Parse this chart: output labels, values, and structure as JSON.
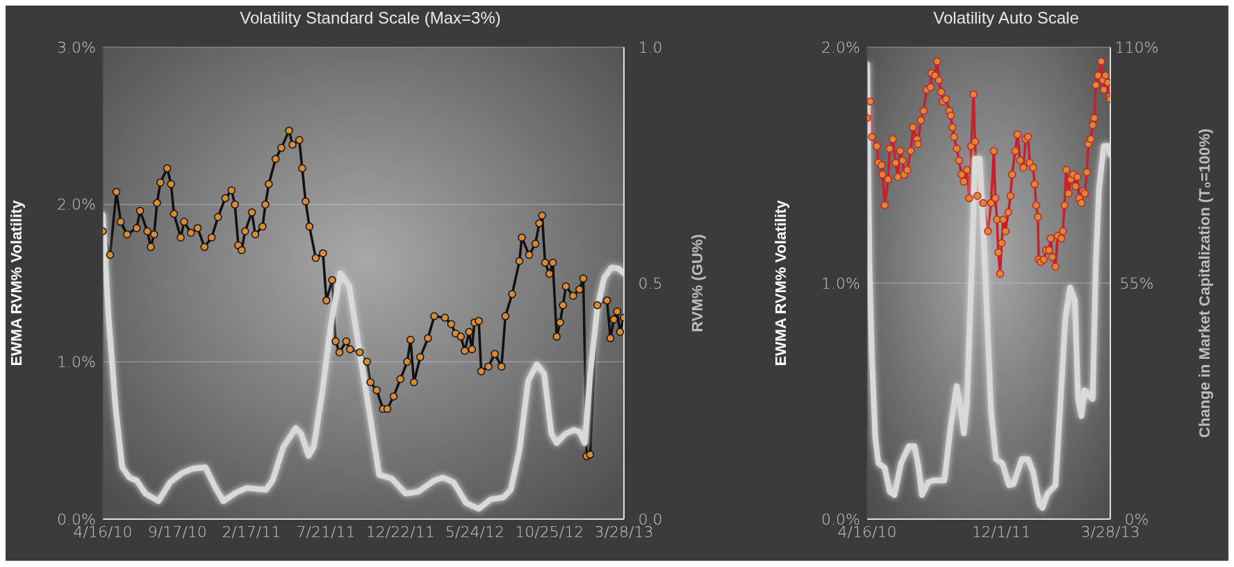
{
  "chart_data": [
    {
      "type": "line",
      "title": "Volatility Standard Scale (Max=3%)",
      "ylabel": "EWMA RVM% Volatility",
      "y2label": "RVM% (GU%)",
      "grid": "y",
      "xlim": [
        "2010-04-16",
        "2013-03-28"
      ],
      "xticks": [
        {
          "value": "2010-04-16",
          "label": "4/16/10"
        },
        {
          "value": "2010-09-17",
          "label": "9/17/10"
        },
        {
          "value": "2011-02-17",
          "label": "2/17/11"
        },
        {
          "value": "2011-07-21",
          "label": "7/21/11"
        },
        {
          "value": "2011-12-22",
          "label": "12/22/11"
        },
        {
          "value": "2012-05-24",
          "label": "5/24/12"
        },
        {
          "value": "2012-10-25",
          "label": "10/25/12"
        },
        {
          "value": "2013-03-28",
          "label": "3/28/13"
        }
      ],
      "ylim": [
        0,
        3
      ],
      "yticks": [
        {
          "value": 0,
          "label": "0.0%"
        },
        {
          "value": 1,
          "label": "1.0%"
        },
        {
          "value": 2,
          "label": "2.0%"
        },
        {
          "value": 3,
          "label": "3.0%"
        }
      ],
      "y2lim": [
        0,
        1
      ],
      "y2ticks": [
        {
          "value": 0,
          "label": "0.0"
        },
        {
          "value": 0.5,
          "label": "0.5"
        },
        {
          "value": 1,
          "label": "1.0"
        }
      ],
      "series": [
        {
          "color": "#111111",
          "marker": "circle",
          "x": [
            "2010-04-16",
            "2010-05-01",
            "2010-05-14",
            "2010-05-23",
            "2010-06-05",
            "2010-06-25",
            "2010-07-02",
            "2010-07-17",
            "2010-07-24",
            "2010-07-31",
            "2010-08-06",
            "2010-08-13",
            "2010-08-27",
            "2010-09-04",
            "2010-09-10",
            "2010-09-24",
            "2010-10-01",
            "2010-10-15",
            "2010-10-29",
            "2010-11-12",
            "2010-11-27",
            "2010-12-10",
            "2010-12-25",
            "2011-01-07",
            "2011-01-14",
            "2011-01-21",
            "2011-01-28",
            "2011-02-04",
            "2011-02-18",
            "2011-02-25",
            "2011-03-12",
            "2011-03-18",
            "2011-03-25",
            "2011-04-08",
            "2011-04-20",
            "2011-05-06",
            "2011-05-13",
            "2011-05-27",
            "2011-06-02",
            "2011-06-09",
            "2011-06-17",
            "2011-06-30",
            "2011-07-15",
            "2011-07-22",
            "2011-08-03",
            "2011-08-10",
            "2011-08-18",
            "2011-09-01",
            "2011-09-09",
            "2011-09-29",
            "2011-10-14",
            "2011-10-21",
            "2011-11-03",
            "2011-11-16",
            "2011-11-25",
            "2011-12-08",
            "2011-12-22",
            "2012-01-05",
            "2012-01-12",
            "2012-01-19",
            "2012-02-01",
            "2012-02-17",
            "2012-03-01",
            "2012-03-23",
            "2012-04-05",
            "2012-04-14",
            "2012-04-25",
            "2012-05-03",
            "2012-05-12",
            "2012-05-18",
            "2012-05-23",
            "2012-06-01",
            "2012-06-06",
            "2012-06-21",
            "2012-07-04",
            "2012-07-18",
            "2012-07-26",
            "2012-08-09",
            "2012-08-24",
            "2012-08-29",
            "2012-09-13",
            "2012-09-26",
            "2012-10-04",
            "2012-10-10",
            "2012-10-16",
            "2012-10-25",
            "2012-11-01",
            "2012-11-09",
            "2012-11-16",
            "2012-11-22",
            "2012-11-28",
            "2012-12-13",
            "2012-12-26",
            "2013-01-03",
            "2013-01-10",
            "2013-01-17",
            "2013-02-01",
            "2013-02-21",
            "2013-02-28",
            "2013-03-07",
            "2013-03-14",
            "2013-03-20",
            "2013-03-28"
          ],
          "values": [
            1.83,
            1.68,
            2.08,
            1.89,
            1.81,
            1.85,
            1.96,
            1.83,
            1.73,
            1.81,
            2.01,
            2.14,
            2.23,
            2.13,
            1.94,
            1.79,
            1.89,
            1.82,
            1.85,
            1.73,
            1.79,
            1.92,
            2.04,
            2.09,
            2.0,
            1.74,
            1.71,
            1.83,
            1.95,
            1.81,
            1.86,
            2.0,
            2.13,
            2.29,
            2.36,
            2.47,
            2.38,
            2.41,
            2.23,
            2.02,
            1.86,
            1.66,
            1.69,
            1.39,
            1.52,
            1.13,
            1.06,
            1.13,
            1.08,
            1.06,
            1.0,
            0.87,
            0.82,
            0.7,
            0.7,
            0.78,
            0.89,
            1.0,
            1.14,
            0.87,
            1.03,
            1.15,
            1.29,
            1.28,
            1.24,
            1.18,
            1.16,
            1.07,
            1.19,
            1.08,
            1.25,
            1.26,
            0.94,
            0.97,
            1.05,
            0.97,
            1.29,
            1.43,
            1.64,
            1.79,
            1.68,
            1.75,
            1.88,
            1.93,
            1.63,
            1.56,
            1.63,
            1.16,
            1.25,
            1.36,
            1.48,
            1.42,
            1.46,
            1.53,
            0.4,
            0.41,
            1.36,
            1.39,
            1.15,
            1.27,
            1.32,
            1.19,
            1.28
          ]
        },
        {
          "color": "#d9d9d9",
          "axis": "y2",
          "marker": "none",
          "x": [
            "2010-04-16",
            "2010-04-27",
            "2010-05-12",
            "2010-05-26",
            "2010-06-10",
            "2010-06-25",
            "2010-07-13",
            "2010-08-09",
            "2010-09-02",
            "2010-09-27",
            "2010-10-19",
            "2010-11-14",
            "2010-12-03",
            "2010-12-21",
            "2011-01-16",
            "2011-02-07",
            "2011-03-19",
            "2011-04-02",
            "2011-04-24",
            "2011-05-20",
            "2011-05-31",
            "2011-06-15",
            "2011-06-26",
            "2011-07-14",
            "2011-08-01",
            "2011-08-20",
            "2011-09-07",
            "2011-09-29",
            "2011-10-18",
            "2011-11-08",
            "2011-12-04",
            "2012-01-02",
            "2012-01-28",
            "2012-03-01",
            "2012-03-19",
            "2012-04-10",
            "2012-05-06",
            "2012-06-01",
            "2012-06-26",
            "2012-07-22",
            "2012-08-06",
            "2012-08-24",
            "2012-09-11",
            "2012-09-29",
            "2012-10-14",
            "2012-10-29",
            "2012-11-09",
            "2012-11-27",
            "2012-12-15",
            "2012-12-26",
            "2013-01-06",
            "2013-01-17",
            "2013-02-01",
            "2013-02-15",
            "2013-03-02",
            "2013-03-17",
            "2013-03-28"
          ],
          "values": [
            0.645,
            0.44,
            0.24,
            0.11,
            0.088,
            0.082,
            0.054,
            0.038,
            0.078,
            0.098,
            0.107,
            0.11,
            0.07,
            0.038,
            0.056,
            0.066,
            0.062,
            0.082,
            0.153,
            0.193,
            0.181,
            0.134,
            0.153,
            0.273,
            0.416,
            0.521,
            0.495,
            0.352,
            0.233,
            0.094,
            0.086,
            0.054,
            0.058,
            0.082,
            0.088,
            0.078,
            0.034,
            0.022,
            0.042,
            0.046,
            0.062,
            0.145,
            0.293,
            0.328,
            0.308,
            0.181,
            0.161,
            0.181,
            0.189,
            0.185,
            0.161,
            0.304,
            0.448,
            0.511,
            0.533,
            0.531,
            0.521
          ]
        }
      ]
    },
    {
      "type": "line",
      "title": "Volatility Auto Scale",
      "ylabel": "EWMA RVM% Volatility",
      "y2label": "Change in Market Capitalization (T₀=100%)",
      "grid": "y",
      "xlim": [
        "2010-04-16",
        "2013-03-28"
      ],
      "xticks": [
        {
          "value": "2010-04-16",
          "label": "4/16/10"
        },
        {
          "value": "2011-12-01",
          "label": "12/1/11"
        },
        {
          "value": "2013-03-28",
          "label": "3/28/13"
        }
      ],
      "ylim": [
        0,
        2
      ],
      "yticks": [
        {
          "value": 0,
          "label": "0.0%"
        },
        {
          "value": 1,
          "label": "1.0%"
        },
        {
          "value": 2,
          "label": "2.0%"
        }
      ],
      "y2lim": [
        0,
        110
      ],
      "y2ticks": [
        {
          "value": 0,
          "label": "0%"
        },
        {
          "value": 55,
          "label": "55%"
        },
        {
          "value": 110,
          "label": "110%"
        }
      ],
      "series": [
        {
          "color": "#c8202a",
          "marker": "circle",
          "x": [
            "2010-04-16",
            "2010-04-30",
            "2010-05-07",
            "2010-05-29",
            "2010-06-05",
            "2010-06-19",
            "2010-06-23",
            "2010-07-03",
            "2010-07-18",
            "2010-07-25",
            "2010-08-08",
            "2010-08-20",
            "2010-08-30",
            "2010-09-10",
            "2010-09-20",
            "2010-09-27",
            "2010-10-11",
            "2010-10-26",
            "2010-11-05",
            "2010-11-23",
            "2010-11-27",
            "2010-12-10",
            "2010-12-22",
            "2011-01-05",
            "2011-01-22",
            "2011-01-26",
            "2011-02-10",
            "2011-02-20",
            "2011-02-28",
            "2011-03-10",
            "2011-03-17",
            "2011-03-31",
            "2011-04-15",
            "2011-04-22",
            "2011-04-29",
            "2011-05-06",
            "2011-05-18",
            "2011-05-28",
            "2011-06-08",
            "2011-06-18",
            "2011-07-02",
            "2011-07-12",
            "2011-07-21",
            "2011-07-31",
            "2011-08-07",
            "2011-08-17",
            "2011-09-12",
            "2011-10-03",
            "2011-10-17",
            "2011-10-29",
            "2011-11-05",
            "2011-11-12",
            "2011-11-18",
            "2011-11-26",
            "2011-12-03",
            "2011-12-10",
            "2011-12-20",
            "2012-01-01",
            "2012-01-11",
            "2012-01-18",
            "2012-02-01",
            "2012-02-11",
            "2012-02-23",
            "2012-03-08",
            "2012-03-18",
            "2012-03-29",
            "2012-04-05",
            "2012-04-20",
            "2012-04-27",
            "2012-05-04",
            "2012-05-11",
            "2012-05-15",
            "2012-05-25",
            "2012-06-06",
            "2012-06-16",
            "2012-06-30",
            "2012-07-07",
            "2012-07-14",
            "2012-07-28",
            "2012-08-07",
            "2012-08-23",
            "2012-08-30",
            "2012-09-06",
            "2012-09-14",
            "2012-09-24",
            "2012-10-04",
            "2012-10-15",
            "2012-10-25",
            "2012-11-02",
            "2012-11-10",
            "2012-11-20",
            "2012-11-27",
            "2012-12-05",
            "2012-12-14",
            "2012-12-21",
            "2013-01-01",
            "2013-01-09",
            "2013-01-16",
            "2013-01-23",
            "2013-02-02",
            "2013-02-16",
            "2013-02-23",
            "2013-02-27",
            "2013-03-07",
            "2013-03-17",
            "2013-03-24",
            "2013-03-28"
          ],
          "values": [
            1.7,
            1.77,
            1.62,
            1.58,
            1.51,
            1.5,
            1.46,
            1.33,
            1.44,
            1.57,
            1.61,
            1.51,
            1.45,
            1.56,
            1.52,
            1.46,
            1.48,
            1.56,
            1.66,
            1.61,
            1.59,
            1.69,
            1.73,
            1.82,
            1.83,
            1.89,
            1.88,
            1.94,
            1.86,
            1.81,
            1.77,
            1.78,
            1.73,
            1.71,
            1.66,
            1.62,
            1.57,
            1.52,
            1.46,
            1.43,
            1.48,
            1.36,
            1.58,
            1.8,
            1.6,
            1.37,
            1.34,
            1.22,
            1.34,
            1.56,
            1.36,
            1.27,
            1.13,
            1.04,
            1.17,
            1.27,
            1.22,
            1.3,
            1.37,
            1.46,
            1.56,
            1.63,
            1.52,
            1.49,
            1.61,
            1.62,
            1.51,
            1.49,
            1.42,
            1.33,
            1.28,
            1.1,
            1.09,
            1.1,
            1.14,
            1.14,
            1.19,
            1.11,
            1.07,
            1.2,
            1.19,
            1.22,
            1.33,
            1.48,
            1.38,
            1.44,
            1.46,
            1.41,
            1.45,
            1.36,
            1.34,
            1.39,
            1.38,
            1.47,
            1.59,
            1.61,
            1.67,
            1.7,
            1.84,
            1.88,
            1.94,
            1.86,
            1.82,
            1.88,
            1.85,
            1.79,
            1.78
          ]
        },
        {
          "color": "#d9d9d9",
          "axis": "y2",
          "marker": "none",
          "x": [
            "2010-04-16",
            "2010-04-26",
            "2010-05-07",
            "2010-05-22",
            "2010-06-05",
            "2010-07-03",
            "2010-07-25",
            "2010-08-15",
            "2010-09-13",
            "2010-10-18",
            "2010-11-12",
            "2010-11-30",
            "2010-12-15",
            "2011-01-12",
            "2011-02-02",
            "2011-03-24",
            "2011-04-22",
            "2011-05-18",
            "2011-06-04",
            "2011-06-18",
            "2011-07-02",
            "2011-07-24",
            "2011-08-07",
            "2011-08-28",
            "2011-09-19",
            "2011-10-17",
            "2011-11-08",
            "2011-12-06",
            "2012-01-04",
            "2012-01-25",
            "2012-03-01",
            "2012-03-29",
            "2012-04-20",
            "2012-05-18",
            "2012-06-01",
            "2012-06-23",
            "2012-07-28",
            "2012-08-19",
            "2012-09-10",
            "2012-10-01",
            "2012-10-22",
            "2012-11-05",
            "2012-11-20",
            "2012-12-04",
            "2013-01-09",
            "2013-01-23",
            "2013-02-06",
            "2013-02-27",
            "2013-03-21",
            "2013-03-28"
          ],
          "values": [
            106,
            60,
            38,
            19,
            13,
            12,
            6.4,
            5.6,
            13,
            17,
            17,
            12,
            5.6,
            8.6,
            9,
            9,
            22,
            31,
            26,
            20,
            27,
            60,
            84,
            84,
            60,
            25,
            14,
            13,
            7.9,
            8.2,
            14,
            14,
            11,
            3.4,
            2.6,
            6,
            7.9,
            27,
            47,
            54,
            51,
            28,
            24,
            30,
            28,
            60,
            77,
            87,
            87,
            85
          ]
        }
      ]
    }
  ]
}
